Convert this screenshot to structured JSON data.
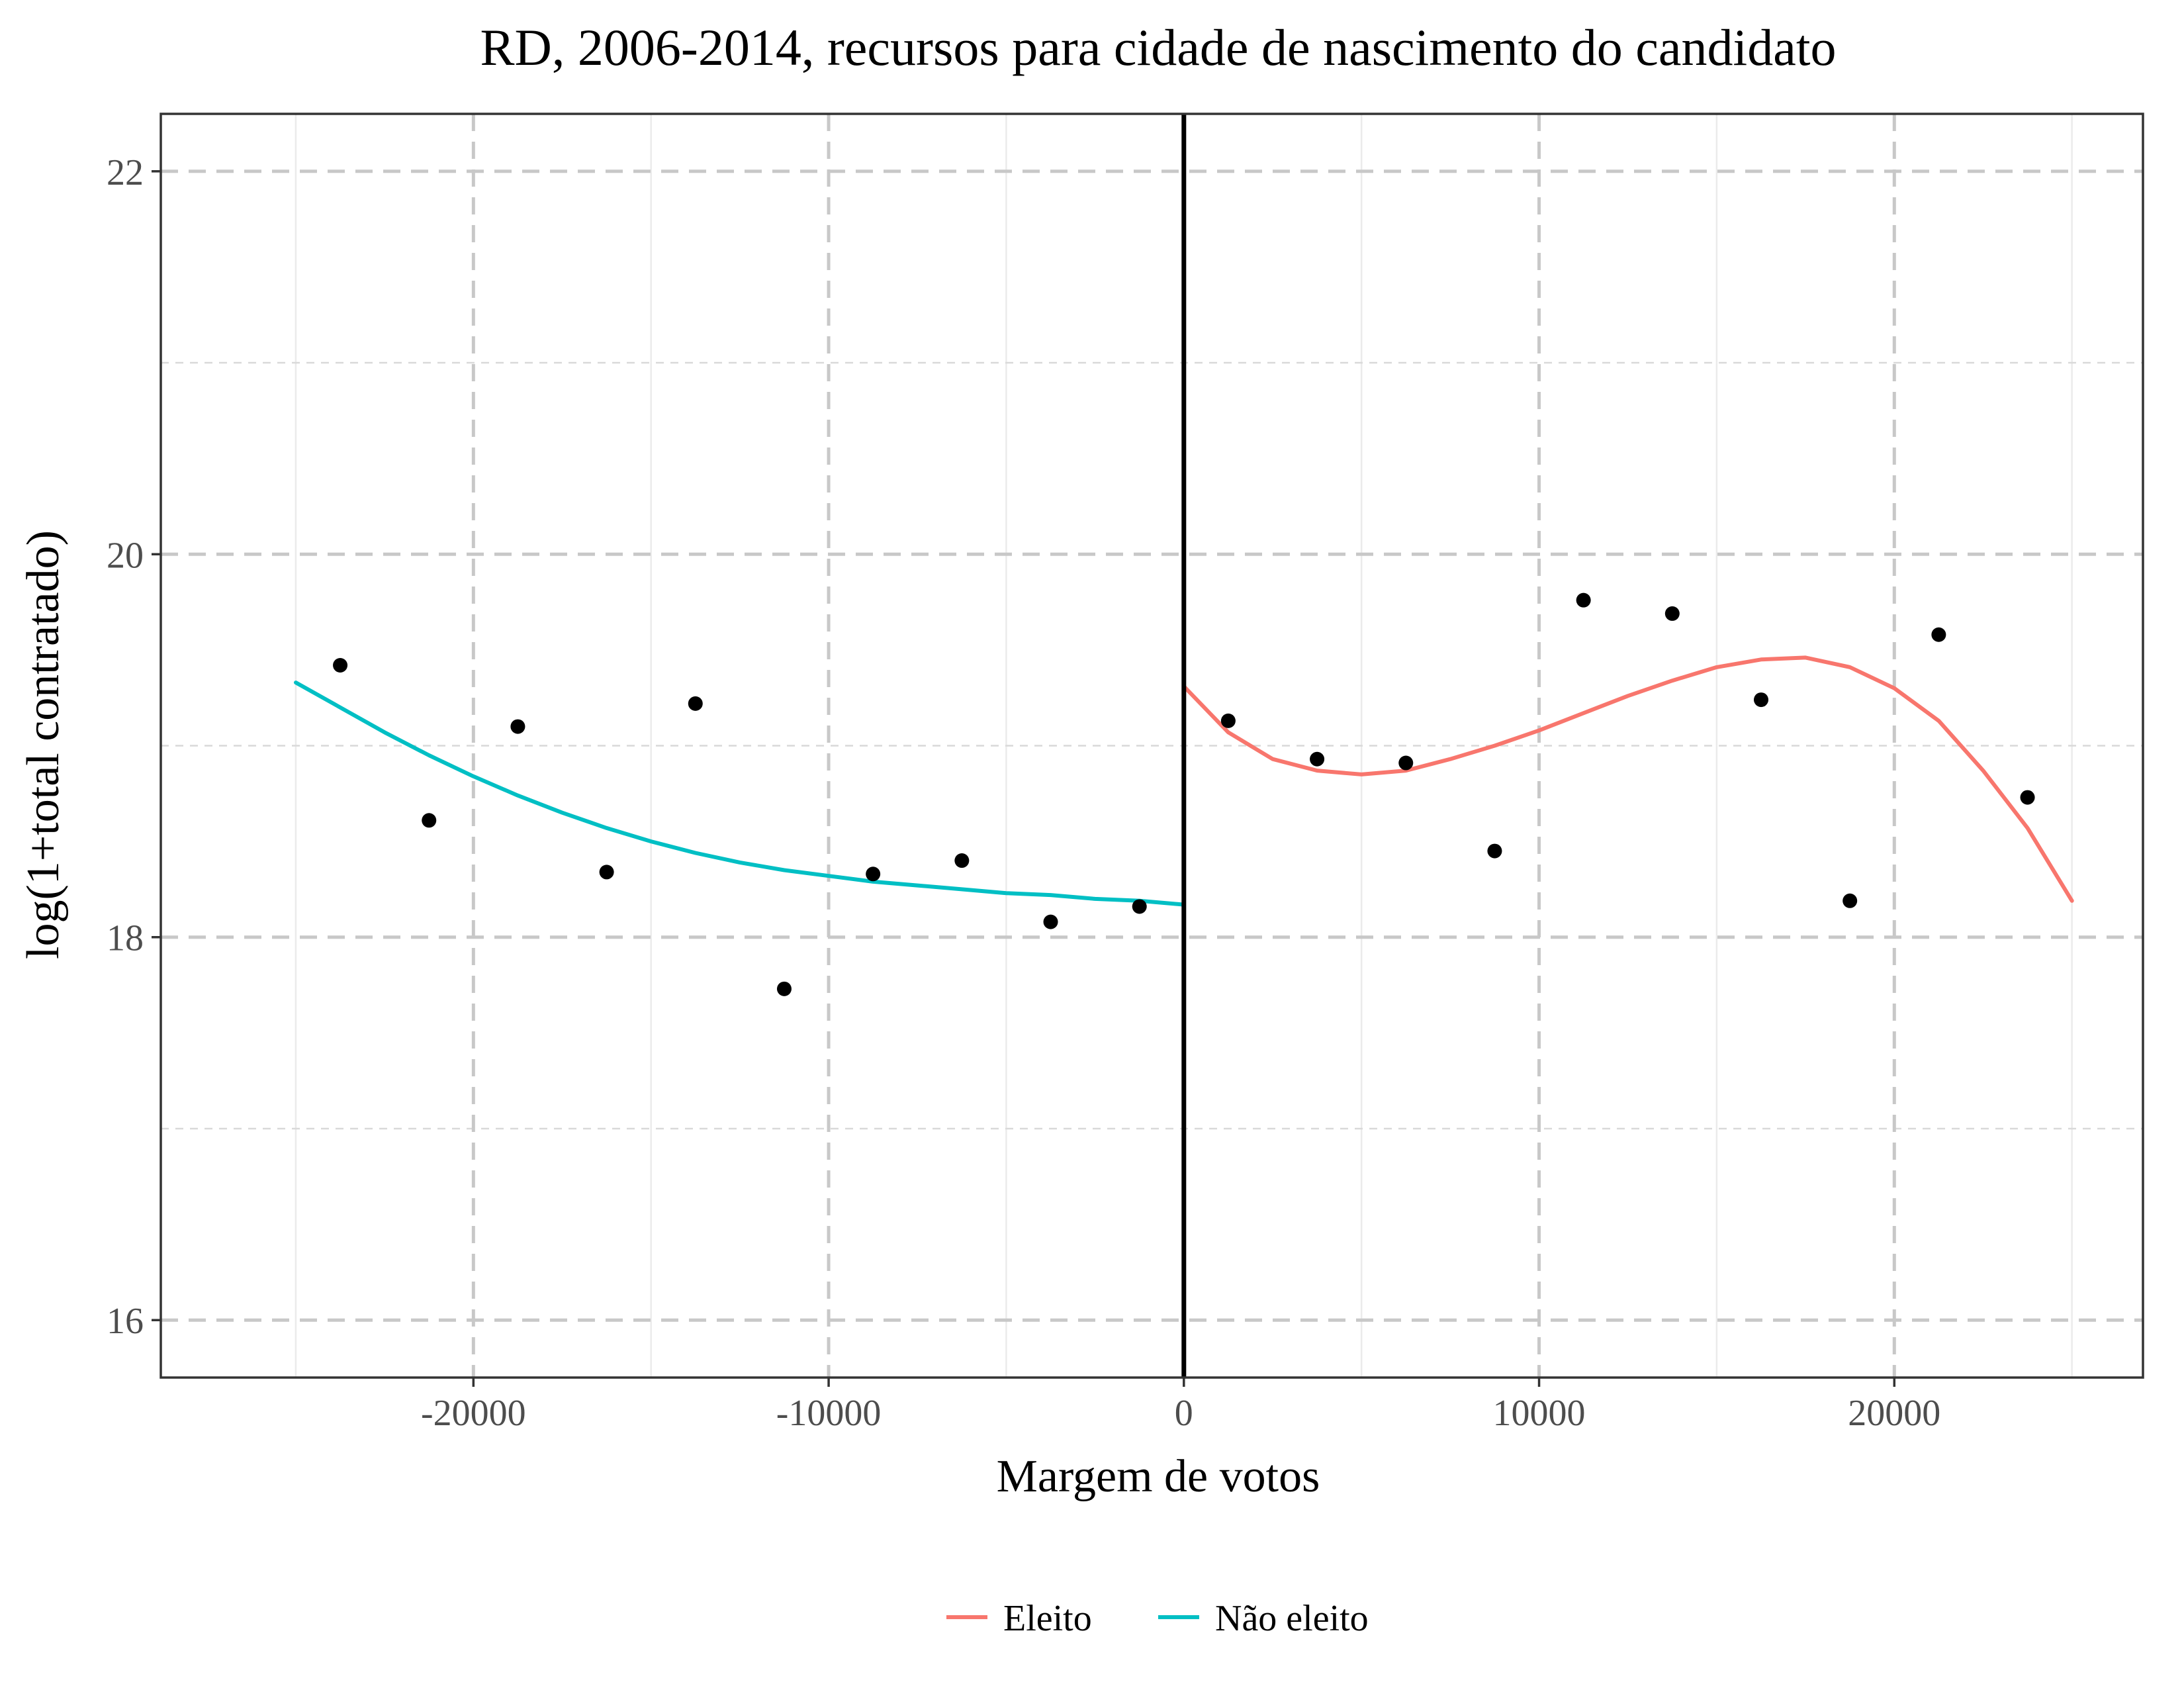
{
  "chart_data": {
    "type": "scatter",
    "title": "RD, 2006-2014, recursos para cidade de nascimento do candidato",
    "xlabel": "Margem de votos",
    "ylabel": "log(1+total contratado)",
    "xlim": [
      -28800,
      27000
    ],
    "ylim": [
      15.7,
      22.3
    ],
    "x_ticks": [
      -20000,
      -10000,
      0,
      10000,
      20000
    ],
    "x_tick_labels": [
      "-20000",
      "-10000",
      "0",
      "10000",
      "20000"
    ],
    "y_ticks": [
      16,
      18,
      20,
      22
    ],
    "y_tick_labels": [
      "16",
      "18",
      "20",
      "22"
    ],
    "x_minor_ticks": [
      -25000,
      -15000,
      -5000,
      5000,
      15000,
      25000
    ],
    "y_minor_ticks": [
      17,
      19,
      21
    ],
    "grid": true,
    "cutoff_x": 0,
    "legend_position": "bottom",
    "points": [
      {
        "x": -23750,
        "y": 19.42
      },
      {
        "x": -21250,
        "y": 18.61
      },
      {
        "x": -18750,
        "y": 19.1
      },
      {
        "x": -16250,
        "y": 18.34
      },
      {
        "x": -13750,
        "y": 19.22
      },
      {
        "x": -11250,
        "y": 17.73
      },
      {
        "x": -8750,
        "y": 18.33
      },
      {
        "x": -6250,
        "y": 18.4
      },
      {
        "x": -3750,
        "y": 18.08
      },
      {
        "x": -1250,
        "y": 18.16
      },
      {
        "x": 1250,
        "y": 19.13
      },
      {
        "x": 3750,
        "y": 18.93
      },
      {
        "x": 6250,
        "y": 18.91
      },
      {
        "x": 8750,
        "y": 18.45
      },
      {
        "x": 11250,
        "y": 19.76
      },
      {
        "x": 13750,
        "y": 19.69
      },
      {
        "x": 16250,
        "y": 19.24
      },
      {
        "x": 18750,
        "y": 18.19
      },
      {
        "x": 21250,
        "y": 19.58
      },
      {
        "x": 23750,
        "y": 18.73
      }
    ],
    "series": [
      {
        "name": "Eleito",
        "color": "#F8766D",
        "x": [
          0,
          1250,
          2500,
          3750,
          5000,
          6250,
          7500,
          8750,
          10000,
          11250,
          12500,
          13750,
          15000,
          16250,
          17500,
          18750,
          20000,
          21250,
          22500,
          23750,
          25000
        ],
        "y": [
          19.31,
          19.07,
          18.93,
          18.87,
          18.85,
          18.87,
          18.93,
          19.0,
          19.08,
          19.17,
          19.26,
          19.34,
          19.41,
          19.45,
          19.46,
          19.41,
          19.3,
          19.13,
          18.87,
          18.57,
          18.19
        ]
      },
      {
        "name": "Não eleito",
        "color": "#00BFC4",
        "x": [
          -25000,
          -23750,
          -22500,
          -21250,
          -20000,
          -18750,
          -17500,
          -16250,
          -15000,
          -13750,
          -12500,
          -11250,
          -10000,
          -8750,
          -7500,
          -6250,
          -5000,
          -3750,
          -2500,
          -1250,
          0
        ],
        "y": [
          19.33,
          19.2,
          19.07,
          18.95,
          18.84,
          18.74,
          18.65,
          18.57,
          18.5,
          18.44,
          18.39,
          18.35,
          18.32,
          18.29,
          18.27,
          18.25,
          18.23,
          18.22,
          18.2,
          18.19,
          18.17
        ]
      }
    ]
  }
}
